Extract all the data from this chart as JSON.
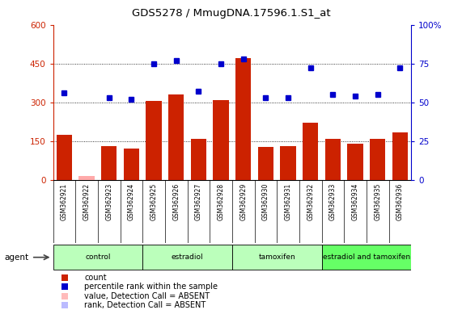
{
  "title": "GDS5278 / MmugDNA.17596.1.S1_at",
  "samples": [
    "GSM362921",
    "GSM362922",
    "GSM362923",
    "GSM362924",
    "GSM362925",
    "GSM362926",
    "GSM362927",
    "GSM362928",
    "GSM362929",
    "GSM362930",
    "GSM362931",
    "GSM362932",
    "GSM362933",
    "GSM362934",
    "GSM362935",
    "GSM362936"
  ],
  "bar_values": [
    175,
    15,
    130,
    122,
    305,
    330,
    160,
    310,
    470,
    128,
    130,
    220,
    160,
    140,
    160,
    185
  ],
  "bar_absent": [
    false,
    true,
    false,
    false,
    false,
    false,
    false,
    false,
    false,
    false,
    false,
    false,
    false,
    false,
    false,
    false
  ],
  "dot_values": [
    56,
    null,
    53,
    52,
    75,
    77,
    57,
    75,
    78,
    53,
    53,
    72,
    55,
    54,
    55,
    72
  ],
  "dot_absent": [
    false,
    false,
    false,
    false,
    false,
    false,
    false,
    false,
    false,
    false,
    false,
    false,
    false,
    false,
    false,
    false
  ],
  "ylim_left": [
    0,
    600
  ],
  "ylim_right": [
    0,
    100
  ],
  "yticks_left": [
    0,
    150,
    300,
    450,
    600
  ],
  "yticks_right": [
    0,
    25,
    50,
    75,
    100
  ],
  "groups": [
    {
      "label": "control",
      "start": 0,
      "end": 4,
      "color": "#bbffbb"
    },
    {
      "label": "estradiol",
      "start": 4,
      "end": 8,
      "color": "#bbffbb"
    },
    {
      "label": "tamoxifen",
      "start": 8,
      "end": 12,
      "color": "#bbffbb"
    },
    {
      "label": "estradiol and tamoxifen",
      "start": 12,
      "end": 16,
      "color": "#66ff66"
    }
  ],
  "bar_color": "#cc2200",
  "bar_absent_color": "#ffaaaa",
  "dot_color": "#0000cc",
  "dot_absent_color": "#aaaaff",
  "bg_color": "#ffffff",
  "sample_box_color": "#cccccc",
  "legend_items": [
    {
      "label": "count",
      "color": "#cc2200"
    },
    {
      "label": "percentile rank within the sample",
      "color": "#0000cc"
    },
    {
      "label": "value, Detection Call = ABSENT",
      "color": "#ffbbbb"
    },
    {
      "label": "rank, Detection Call = ABSENT",
      "color": "#bbbbff"
    }
  ]
}
